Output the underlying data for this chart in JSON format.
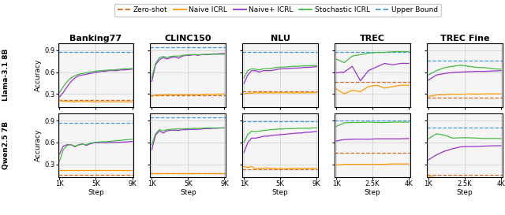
{
  "legend_labels": [
    "Zero-shot",
    "Naive ICRL",
    "Naive+ ICRL",
    "Stochastic ICRL",
    "Upper Bound"
  ],
  "colors": {
    "zero_shot": "#d2691e",
    "naive": "#ff9900",
    "naive_plus": "#9933cc",
    "stochastic": "#44bb44",
    "upper_bound": "#4499dd"
  },
  "row_labels": [
    "Llama-3.1 8B",
    "Qwen2.5 7B"
  ],
  "col_labels": [
    "Banking77",
    "CLINC150",
    "NLU",
    "TREC",
    "TREC Fine"
  ],
  "col_xticks": [
    [
      "1K",
      "5K",
      "9K"
    ],
    [
      "1K",
      "5K",
      "9K"
    ],
    [
      "1K",
      "5K",
      "9K"
    ],
    [
      "1K",
      "2.5K",
      "4K"
    ],
    [
      "1K",
      "2.5K",
      "4K"
    ]
  ],
  "yticks": [
    0.3,
    0.6,
    0.9
  ],
  "ylim": [
    0.12,
    1.0
  ],
  "curves": {
    "0_0": {
      "zero_shot": 0.215,
      "upper_bound": 0.875,
      "naive": [
        0.205,
        0.2,
        0.195,
        0.195,
        0.19,
        0.195,
        0.195,
        0.195,
        0.195,
        0.19,
        0.19,
        0.19,
        0.19,
        0.19,
        0.19,
        0.19,
        0.19,
        0.19,
        0.19,
        0.19
      ],
      "naive_plus": [
        0.26,
        0.32,
        0.4,
        0.47,
        0.52,
        0.55,
        0.56,
        0.57,
        0.58,
        0.59,
        0.6,
        0.61,
        0.61,
        0.62,
        0.62,
        0.62,
        0.63,
        0.63,
        0.635,
        0.64
      ],
      "stochastic": [
        0.32,
        0.4,
        0.47,
        0.52,
        0.55,
        0.57,
        0.58,
        0.59,
        0.6,
        0.61,
        0.615,
        0.62,
        0.625,
        0.63,
        0.63,
        0.635,
        0.64,
        0.645,
        0.645,
        0.65
      ]
    },
    "0_1": {
      "zero_shot": 0.285,
      "upper_bound": 0.945,
      "naive": [
        0.265,
        0.285,
        0.285,
        0.285,
        0.29,
        0.29,
        0.29,
        0.29,
        0.29,
        0.29,
        0.29,
        0.29,
        0.29,
        0.29,
        0.295,
        0.295,
        0.295,
        0.295,
        0.295,
        0.3
      ],
      "naive_plus": [
        0.47,
        0.7,
        0.77,
        0.8,
        0.78,
        0.8,
        0.81,
        0.79,
        0.82,
        0.83,
        0.83,
        0.84,
        0.83,
        0.84,
        0.84,
        0.84,
        0.85,
        0.85,
        0.855,
        0.855
      ],
      "stochastic": [
        0.52,
        0.72,
        0.8,
        0.815,
        0.8,
        0.815,
        0.82,
        0.82,
        0.83,
        0.835,
        0.84,
        0.84,
        0.84,
        0.84,
        0.845,
        0.845,
        0.845,
        0.845,
        0.845,
        0.845
      ]
    },
    "0_2": {
      "zero_shot": 0.34,
      "upper_bound": 0.875,
      "naive": [
        0.3,
        0.31,
        0.31,
        0.315,
        0.315,
        0.315,
        0.315,
        0.315,
        0.315,
        0.315,
        0.315,
        0.315,
        0.315,
        0.315,
        0.315,
        0.315,
        0.315,
        0.315,
        0.315,
        0.32
      ],
      "naive_plus": [
        0.44,
        0.56,
        0.62,
        0.62,
        0.6,
        0.62,
        0.62,
        0.62,
        0.63,
        0.64,
        0.645,
        0.645,
        0.65,
        0.655,
        0.655,
        0.66,
        0.665,
        0.665,
        0.67,
        0.675
      ],
      "stochastic": [
        0.52,
        0.62,
        0.645,
        0.64,
        0.63,
        0.645,
        0.645,
        0.65,
        0.66,
        0.665,
        0.67,
        0.67,
        0.675,
        0.68,
        0.68,
        0.685,
        0.685,
        0.685,
        0.69,
        0.69
      ]
    },
    "0_3": {
      "zero_shot": 0.47,
      "upper_bound": 0.875,
      "naive": [
        0.37,
        0.3,
        0.35,
        0.33,
        0.4,
        0.42,
        0.38,
        0.4,
        0.42,
        0.42
      ],
      "naive_plus": [
        0.59,
        0.6,
        0.68,
        0.48,
        0.62,
        0.67,
        0.72,
        0.7,
        0.72,
        0.72
      ],
      "stochastic": [
        0.78,
        0.73,
        0.82,
        0.84,
        0.86,
        0.87,
        0.87,
        0.88,
        0.88,
        0.88
      ]
    },
    "0_4": {
      "zero_shot": 0.245,
      "upper_bound": 0.76,
      "naive": [
        0.265,
        0.285,
        0.29,
        0.295,
        0.295,
        0.3,
        0.295,
        0.3,
        0.3,
        0.3
      ],
      "naive_plus": [
        0.49,
        0.56,
        0.58,
        0.595,
        0.6,
        0.605,
        0.61,
        0.61,
        0.615,
        0.62
      ],
      "stochastic": [
        0.56,
        0.62,
        0.66,
        0.68,
        0.695,
        0.68,
        0.665,
        0.66,
        0.645,
        0.64
      ]
    },
    "1_0": {
      "zero_shot": 0.155,
      "upper_bound": 0.875,
      "naive": [
        0.215,
        0.215,
        0.215,
        0.215,
        0.215,
        0.215,
        0.215,
        0.215,
        0.215,
        0.215,
        0.215,
        0.215,
        0.215,
        0.215,
        0.215,
        0.215,
        0.215,
        0.215,
        0.215,
        0.215
      ],
      "naive_plus": [
        0.44,
        0.55,
        0.57,
        0.57,
        0.54,
        0.57,
        0.58,
        0.56,
        0.58,
        0.595,
        0.595,
        0.6,
        0.595,
        0.6,
        0.6,
        0.6,
        0.605,
        0.605,
        0.61,
        0.615
      ],
      "stochastic": [
        0.345,
        0.5,
        0.56,
        0.57,
        0.55,
        0.565,
        0.575,
        0.57,
        0.59,
        0.6,
        0.605,
        0.61,
        0.61,
        0.615,
        0.62,
        0.625,
        0.63,
        0.635,
        0.64,
        0.645
      ]
    },
    "1_1": {
      "zero_shot": 0.175,
      "upper_bound": 0.945,
      "naive": [
        0.175,
        0.175,
        0.175,
        0.175,
        0.175,
        0.175,
        0.175,
        0.175,
        0.175,
        0.175,
        0.175,
        0.175,
        0.175,
        0.175,
        0.175,
        0.175,
        0.175,
        0.175,
        0.175,
        0.175
      ],
      "naive_plus": [
        0.5,
        0.7,
        0.76,
        0.73,
        0.76,
        0.77,
        0.77,
        0.765,
        0.775,
        0.775,
        0.78,
        0.78,
        0.78,
        0.785,
        0.79,
        0.79,
        0.795,
        0.795,
        0.8,
        0.8
      ],
      "stochastic": [
        0.57,
        0.72,
        0.775,
        0.76,
        0.775,
        0.78,
        0.785,
        0.785,
        0.785,
        0.79,
        0.79,
        0.795,
        0.795,
        0.795,
        0.8,
        0.8,
        0.8,
        0.8,
        0.8,
        0.8
      ]
    },
    "1_2": {
      "zero_shot": 0.235,
      "upper_bound": 0.895,
      "naive": [
        0.27,
        0.255,
        0.27,
        0.24,
        0.245,
        0.245,
        0.25,
        0.245,
        0.245,
        0.24,
        0.24,
        0.24,
        0.245,
        0.24,
        0.245,
        0.245,
        0.245,
        0.245,
        0.245,
        0.245
      ],
      "naive_plus": [
        0.46,
        0.6,
        0.66,
        0.66,
        0.67,
        0.685,
        0.685,
        0.695,
        0.7,
        0.705,
        0.71,
        0.715,
        0.72,
        0.725,
        0.73,
        0.73,
        0.74,
        0.74,
        0.745,
        0.75
      ],
      "stochastic": [
        0.6,
        0.71,
        0.755,
        0.75,
        0.755,
        0.765,
        0.77,
        0.775,
        0.78,
        0.785,
        0.785,
        0.79,
        0.79,
        0.79,
        0.795,
        0.795,
        0.795,
        0.795,
        0.8,
        0.8
      ]
    },
    "1_3": {
      "zero_shot": 0.46,
      "upper_bound": 0.9,
      "naive": [
        0.29,
        0.3,
        0.3,
        0.3,
        0.3,
        0.3,
        0.3,
        0.305,
        0.305,
        0.305
      ],
      "naive_plus": [
        0.62,
        0.64,
        0.645,
        0.645,
        0.645,
        0.65,
        0.65,
        0.65,
        0.65,
        0.655
      ],
      "stochastic": [
        0.82,
        0.87,
        0.875,
        0.875,
        0.88,
        0.875,
        0.875,
        0.88,
        0.88,
        0.88
      ]
    },
    "1_4": {
      "zero_shot": 0.155,
      "upper_bound": 0.8,
      "naive": [
        0.14,
        0.11,
        0.09,
        0.085,
        0.08,
        0.085,
        0.08,
        0.08,
        0.08,
        0.08
      ],
      "naive_plus": [
        0.36,
        0.43,
        0.48,
        0.515,
        0.54,
        0.545,
        0.545,
        0.55,
        0.555,
        0.555
      ],
      "stochastic": [
        0.65,
        0.72,
        0.7,
        0.66,
        0.665,
        0.665,
        0.66,
        0.655,
        0.655,
        0.655
      ]
    }
  },
  "figure_width": 6.4,
  "figure_height": 2.73,
  "dpi": 100
}
